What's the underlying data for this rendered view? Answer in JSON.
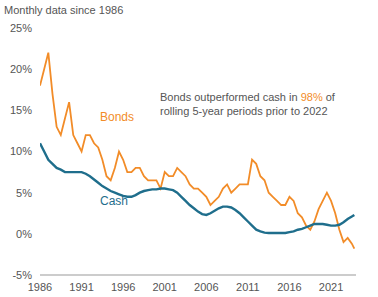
{
  "chart_data": {
    "type": "line",
    "subtitle": "Monthly data since 1986",
    "x": [
      1986,
      1986.5,
      1987,
      1987.5,
      1988,
      1988.5,
      1989,
      1989.5,
      1990,
      1990.5,
      1991,
      1991.5,
      1992,
      1992.5,
      1993,
      1993.5,
      1994,
      1994.5,
      1995,
      1995.5,
      1996,
      1996.5,
      1997,
      1997.5,
      1998,
      1998.5,
      1999,
      1999.5,
      2000,
      2000.5,
      2001,
      2001.5,
      2002,
      2002.5,
      2003,
      2003.5,
      2004,
      2004.5,
      2005,
      2005.5,
      2006,
      2006.5,
      2007,
      2007.5,
      2008,
      2008.5,
      2009,
      2009.5,
      2010,
      2010.5,
      2011,
      2011.5,
      2012,
      2012.5,
      2013,
      2013.5,
      2014,
      2014.5,
      2015,
      2015.5,
      2016,
      2016.5,
      2017,
      2017.5,
      2018,
      2018.5,
      2019,
      2019.5,
      2020,
      2020.5,
      2021,
      2021.5,
      2022,
      2022.5,
      2023,
      2023.5,
      2023.8
    ],
    "series": [
      {
        "name": "Bonds",
        "color": "#f28c28",
        "values": [
          18,
          20,
          22,
          17,
          13,
          12,
          14,
          16,
          12,
          11,
          10,
          12,
          12,
          11,
          10.5,
          9,
          7,
          6.5,
          8,
          10,
          9,
          7.5,
          7.5,
          8,
          8,
          7,
          6.5,
          6.5,
          6.5,
          5.5,
          7.5,
          7,
          7,
          8,
          7.5,
          7,
          6,
          5.5,
          5.5,
          5,
          4.5,
          3.5,
          4,
          4.5,
          5.5,
          6,
          5,
          5.5,
          6,
          6,
          6,
          9,
          8.5,
          7,
          6.5,
          5,
          4.5,
          4,
          3.5,
          3.5,
          4.5,
          4,
          2.5,
          2,
          1,
          0.5,
          1.5,
          3,
          4,
          5,
          4,
          2.5,
          0.5,
          -1,
          -0.5,
          -1.2,
          -1.8
        ]
      },
      {
        "name": "Cash",
        "color": "#1f6e8c",
        "values": [
          11,
          10,
          9,
          8.5,
          8,
          7.8,
          7.5,
          7.5,
          7.5,
          7.5,
          7.5,
          7.3,
          7,
          6.6,
          6.2,
          5.8,
          5.5,
          5.2,
          5,
          4.8,
          4.6,
          4.5,
          4.5,
          4.7,
          5,
          5.2,
          5.3,
          5.4,
          5.4,
          5.5,
          5.5,
          5.4,
          5.3,
          5,
          4.5,
          4,
          3.5,
          3.1,
          2.7,
          2.4,
          2.3,
          2.5,
          2.8,
          3.1,
          3.3,
          3.3,
          3.2,
          2.9,
          2.5,
          2,
          1.5,
          1,
          0.5,
          0.3,
          0.15,
          0.1,
          0.1,
          0.1,
          0.1,
          0.1,
          0.2,
          0.3,
          0.5,
          0.6,
          0.8,
          1,
          1.2,
          1.2,
          1.2,
          1.1,
          1,
          1,
          1.1,
          1.4,
          1.8,
          2.1,
          2.3
        ]
      }
    ],
    "xlim": [
      1986,
      2024
    ],
    "xticks": [
      1986,
      1991,
      1996,
      2001,
      2006,
      2011,
      2016,
      2021
    ],
    "ylim": [
      -5,
      25
    ],
    "yticks": [
      {
        "value": -5,
        "label": "-5%"
      },
      {
        "value": 0,
        "label": "0%"
      },
      {
        "value": 5,
        "label": "5%"
      },
      {
        "value": 10,
        "label": "10%"
      },
      {
        "value": 15,
        "label": "15%"
      },
      {
        "value": 20,
        "label": "20%"
      },
      {
        "value": 25,
        "label": "25%"
      }
    ],
    "grid": false,
    "annotations": [
      {
        "lines": [
          [
            {
              "text": "Bonds outperformed cash in "
            },
            {
              "text": "98%",
              "color": "#f28c28"
            },
            {
              "text": " of"
            }
          ],
          [
            {
              "text": "rolling 5-year periods prior to 2022"
            }
          ]
        ]
      }
    ]
  }
}
